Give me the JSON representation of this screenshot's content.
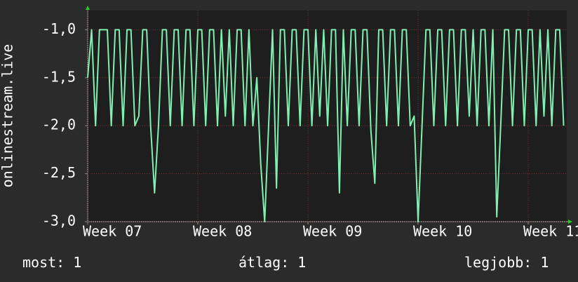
{
  "chart_data": {
    "type": "line",
    "ylabel": "onlinestream.live",
    "x": [
      0,
      0.25,
      0.5,
      0.75,
      1,
      1.25,
      1.5,
      1.75,
      2,
      2.25,
      2.5,
      2.75,
      3,
      3.25,
      3.5,
      3.75,
      4,
      4.25,
      4.5,
      4.75,
      5,
      5.25,
      5.5,
      5.75,
      6,
      6.25,
      6.5,
      6.75,
      7,
      7.25,
      7.5,
      7.75,
      8,
      8.25,
      8.5,
      8.75,
      9,
      9.25,
      9.5,
      9.75,
      10,
      10.25,
      10.5,
      10.75,
      11,
      11.25,
      11.5,
      11.75,
      12,
      12.25,
      12.5,
      12.75,
      13,
      13.25,
      13.5,
      13.75,
      14,
      14.25,
      14.5,
      14.75,
      15,
      15.25,
      15.5,
      15.75,
      16,
      16.25,
      16.5,
      16.75,
      17,
      17.25,
      17.5,
      17.75,
      18,
      18.25,
      18.5,
      18.75,
      19,
      19.25,
      19.5,
      19.75,
      20,
      20.25,
      20.5,
      20.75,
      21,
      21.25,
      21.5,
      21.75,
      22,
      22.25,
      22.5,
      22.75,
      23,
      23.25,
      23.5,
      23.75,
      24,
      24.25,
      24.5,
      24.75,
      25,
      25.25,
      25.5,
      25.75,
      26,
      26.25,
      26.5,
      26.75,
      27,
      27.25,
      27.5,
      27.75,
      28,
      28.25,
      28.5,
      28.75,
      29,
      29.25,
      29.5,
      29.75,
      30,
      30.25
    ],
    "series": [
      {
        "name": "onlinestream.live",
        "color": "#80f0b0",
        "values": [
          -1.5,
          -1,
          -2,
          -1,
          -1,
          -1,
          -2,
          -1,
          -1,
          -2,
          -1,
          -1,
          -2,
          -1.9,
          -1,
          -1,
          -2,
          -2.7,
          -2,
          -1,
          -1,
          -2,
          -1,
          -1,
          -2,
          -1,
          -1,
          -2,
          -1,
          -1,
          -2,
          -1,
          -1,
          -2,
          -1,
          -1.9,
          -1,
          -2,
          -1,
          -1,
          -2,
          -1,
          -2,
          -1.5,
          -2.4,
          -3.0,
          -2,
          -1,
          -2.65,
          -1,
          -1,
          -2,
          -1,
          -1,
          -2,
          -1,
          -1,
          -2,
          -1,
          -1.9,
          -1,
          -2,
          -1,
          -1,
          -2.7,
          -1,
          -2,
          -1,
          -1,
          -2,
          -1,
          -1,
          -2.05,
          -2.6,
          -1,
          -1,
          -2,
          -1,
          -1,
          -2,
          -1,
          -1,
          -2,
          -1.9,
          -3.0,
          -2,
          -1,
          -1,
          -2,
          -1,
          -1,
          -2,
          -1,
          -1,
          -2,
          -1,
          -1,
          -1.9,
          -1,
          -2,
          -1,
          -1,
          -2,
          -1,
          -2.95,
          -2,
          -1,
          -1,
          -2,
          -1,
          -1,
          -2,
          -1,
          -1,
          -2,
          -1,
          -1.9,
          -1,
          -2,
          -1,
          -1,
          -2
        ]
      }
    ],
    "xlim": [
      0,
      30.45
    ],
    "xticks": [
      {
        "value": 0,
        "label": "Week 07"
      },
      {
        "value": 7,
        "label": "Week 08"
      },
      {
        "value": 14,
        "label": "Week 09"
      },
      {
        "value": 21,
        "label": "Week 10"
      },
      {
        "value": 28,
        "label": "Week 11"
      }
    ],
    "ylim": [
      -3.0,
      -0.8
    ],
    "yticks": [
      {
        "value": -3.0,
        "label": "-3,0"
      },
      {
        "value": -2.5,
        "label": "-2,5"
      },
      {
        "value": -2.0,
        "label": "-2,0"
      },
      {
        "value": -1.5,
        "label": "-1,5"
      },
      {
        "value": -1.0,
        "label": "-1,0"
      }
    ],
    "grid": true,
    "legend": [
      {
        "label": "most:",
        "value": "1"
      },
      {
        "label": "átlag:",
        "value": "1"
      },
      {
        "label": "legjobb:",
        "value": "1"
      }
    ]
  }
}
